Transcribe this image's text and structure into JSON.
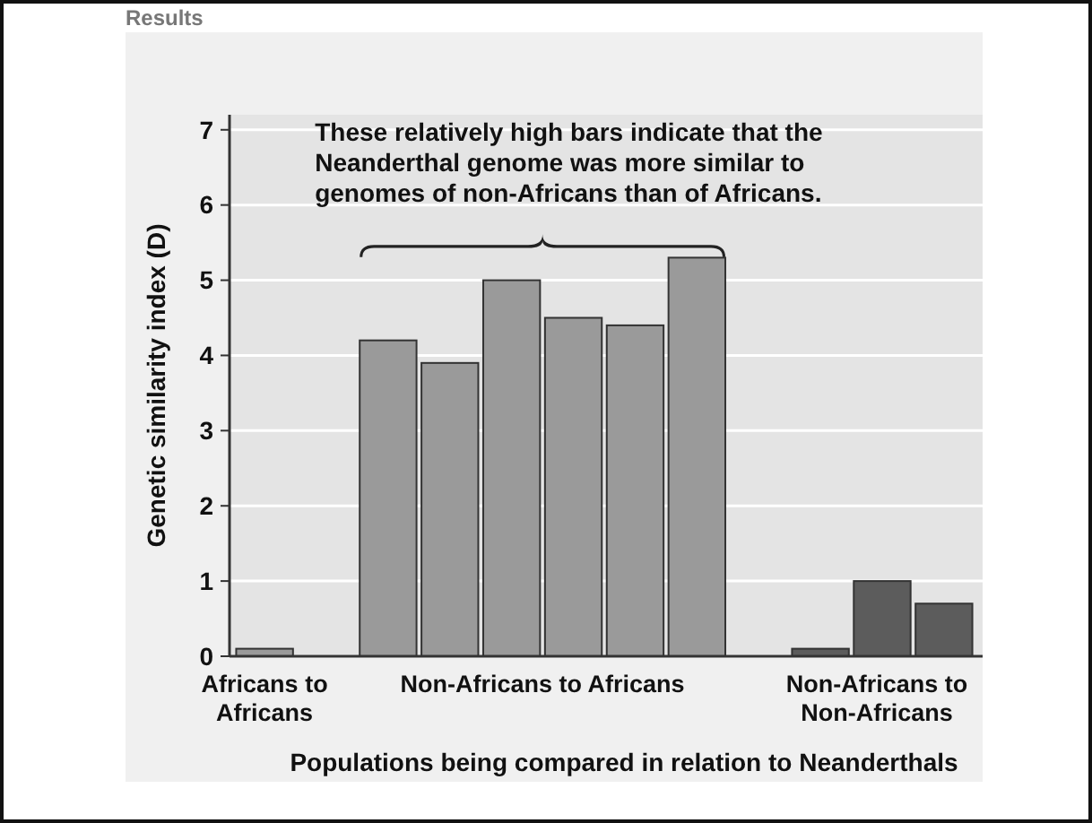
{
  "chart_data": {
    "type": "bar",
    "title": "Results",
    "ylabel": "Genetic similarity index (D)",
    "xlabel": "Populations being compared in relation to Neanderthals",
    "categories": [
      null,
      null,
      null,
      null,
      null,
      null,
      null,
      null,
      null,
      null,
      null,
      null
    ],
    "values": [
      0.1,
      null,
      4.2,
      3.9,
      5.0,
      4.5,
      4.4,
      5.3,
      null,
      0.1,
      1.0,
      0.7
    ],
    "colors": [
      "#9a9a9a",
      null,
      "#9a9a9a",
      "#9a9a9a",
      "#9a9a9a",
      "#9a9a9a",
      "#9a9a9a",
      "#9a9a9a",
      null,
      "#5c5c5c",
      "#5c5c5c",
      "#5c5c5c"
    ],
    "ylim": [
      0,
      7.2
    ],
    "yticks": [
      0,
      1,
      2,
      3,
      4,
      5,
      6,
      7
    ],
    "grid": "y",
    "annotations": [
      "These relatively high bars indicate that the Neanderthal genome was more similar to genomes of non-Africans than of Africans.",
      "Africans to Africans",
      "Non-Africans to Africans",
      "Non-Africans to Non-Africans"
    ]
  }
}
